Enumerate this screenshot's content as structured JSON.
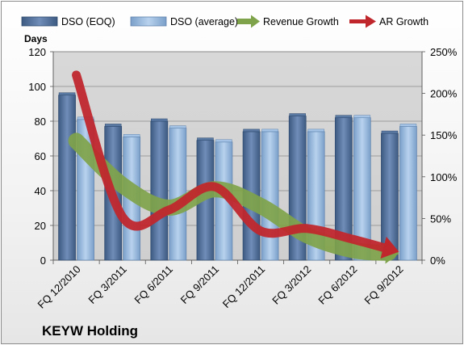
{
  "company": "KEYW Holding",
  "chart_data": {
    "type": "bar",
    "categories": [
      "FQ 12/2010",
      "FQ 3/2011",
      "FQ 6/2011",
      "FQ 9/2011",
      "FQ 12/2011",
      "FQ 3/2012",
      "FQ 6/2012",
      "FQ 9/2012"
    ],
    "ylabel": "Days",
    "ylim": [
      0,
      120
    ],
    "yticks": [
      0,
      20,
      40,
      60,
      80,
      100,
      120
    ],
    "y2lim": [
      0,
      250
    ],
    "y2ticks": [
      "0%",
      "50%",
      "100%",
      "150%",
      "200%",
      "250%"
    ],
    "y2tick_values": [
      0,
      50,
      100,
      150,
      200,
      250
    ],
    "grid": true,
    "legend_position": "top",
    "series": [
      {
        "name": "DSO (EOQ)",
        "type": "bar",
        "axis": "left",
        "color": "#4f6d96",
        "values": [
          95,
          77,
          80,
          69,
          74,
          83,
          82,
          73
        ]
      },
      {
        "name": "DSO (average)",
        "type": "bar",
        "axis": "left",
        "color": "#8fb3d9",
        "values": [
          81,
          71,
          76,
          68,
          74,
          74,
          82,
          77
        ]
      },
      {
        "name": "Revenue Growth",
        "type": "line",
        "axis": "right",
        "unit": "%",
        "color": "#7fa34a",
        "values": [
          143,
          90,
          63,
          85,
          65,
          30,
          12,
          8
        ]
      },
      {
        "name": "AR Growth",
        "type": "line",
        "axis": "right",
        "unit": "%",
        "color": "#c0272d",
        "values": [
          222,
          52,
          60,
          88,
          35,
          38,
          25,
          10
        ]
      }
    ]
  }
}
